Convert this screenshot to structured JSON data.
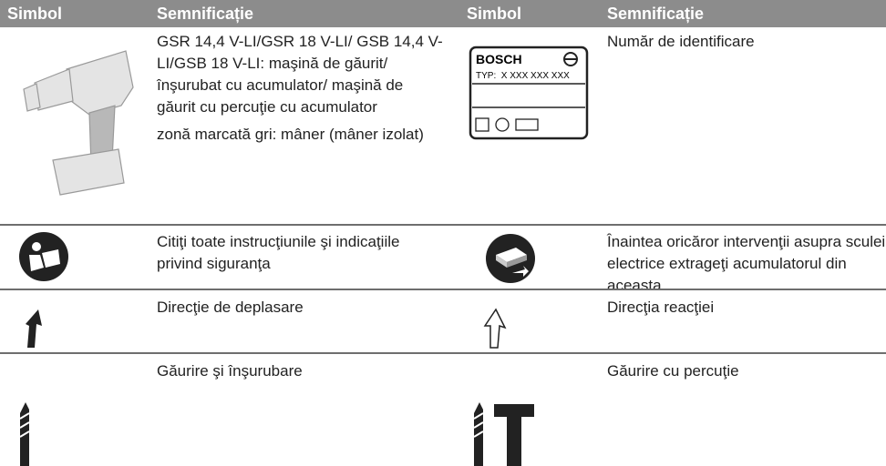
{
  "header": [
    "Simbol",
    "Semnificație",
    "Simbol",
    "Semnificație"
  ],
  "rows": [
    {
      "left": [
        "GSR 14,4 V-LI/GSR 18 V-LI/ GSB 14,4 V-LI/GSB 18 V-LI: maşină de găurit/înşurubat cu acumulator/ maşină de găurit cu percuţie cu acumulator",
        "zonă marcată gri: mâner (mâner izolat)"
      ],
      "right": [
        "Număr de identificare"
      ],
      "label": {
        "brand": "BOSCH",
        "type": "TYP:  X XXX XXX XXX"
      }
    },
    {
      "left": [
        "Citiţi toate instrucţiunile şi indicaţiile privind siguranţa"
      ],
      "right": [
        "Înaintea oricăror intervenţii asupra sculei electrice extrageţi acumulatorul din aceasta"
      ]
    },
    {
      "left": [
        "Direcţie de deplasare"
      ],
      "right": [
        "Direcţia reacţiei"
      ]
    },
    {
      "left": [
        "Găurire şi înşurubare"
      ],
      "right": [
        "Găurire cu percuţie"
      ]
    }
  ]
}
